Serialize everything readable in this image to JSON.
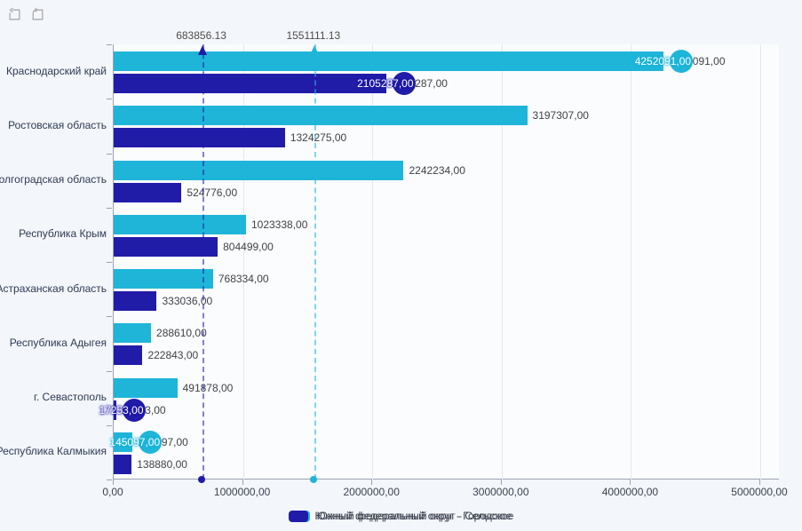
{
  "toolbar": {
    "clear_selection_tooltip": "clear-selection",
    "undo_tooltip": "undo"
  },
  "chart_data": {
    "type": "bar",
    "orientation": "horizontal",
    "title": "",
    "xlabel": "",
    "ylabel": "",
    "xlim": [
      0,
      5000000
    ],
    "grid": "vertical",
    "legend_position": "bottom",
    "value_suffix": ",00",
    "categories": [
      "Краснодарский край",
      "Ростовская область",
      "Волгоградская область",
      "Республика Крым",
      "Астраханская область",
      "Республика Адыгея",
      "г. Севастополь",
      "Республика Калмыкия"
    ],
    "series": [
      {
        "name": "Южный федеральный округ - Сельское",
        "color": "#1eb5d8",
        "values": [
          4252091,
          3197307,
          2242234,
          1023338,
          768334,
          288610,
          491878,
          145097
        ]
      },
      {
        "name": "Южный федеральный округ - Городское",
        "color": "#211ca8",
        "values": [
          2105287,
          1324275,
          524776,
          804499,
          333036,
          222843,
          17253,
          138880
        ]
      }
    ],
    "point_markers": [
      {
        "series": 0,
        "category": 0,
        "value": 4252091
      },
      {
        "series": 1,
        "category": 0,
        "value": 2105287
      },
      {
        "series": 1,
        "category": 6,
        "value": 17253
      },
      {
        "series": 0,
        "category": 7,
        "value": 145097
      }
    ],
    "constant_lines": [
      {
        "label": "683856.13",
        "value": 683856.13,
        "series": 1
      },
      {
        "label": "1551111.13",
        "value": 1551111.13,
        "series": 0
      }
    ],
    "x_tick_values": [
      0,
      1000000,
      2000000,
      3000000,
      4000000,
      5000000
    ]
  },
  "colors": {
    "page_background": "#f3f6fa",
    "plot_background": "#fbfcfe",
    "gridline": "#e4e8ef",
    "axis": "#9aa2b2",
    "value_label": "#3f4246",
    "category_label": "#2e3a55",
    "tick_label": "#3c4250",
    "constant_line_label": "#4c4c4c",
    "toolbar_icon": "#a9a9a9"
  }
}
